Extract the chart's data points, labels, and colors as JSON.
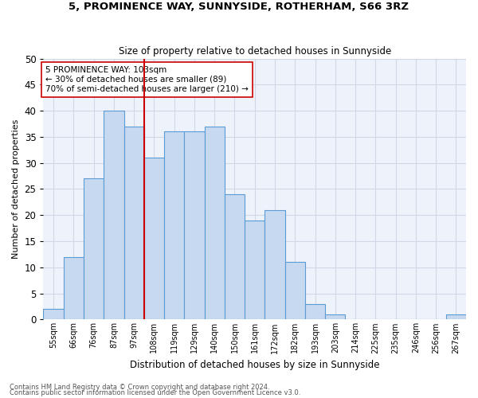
{
  "title1": "5, PROMINENCE WAY, SUNNYSIDE, ROTHERHAM, S66 3RZ",
  "title2": "Size of property relative to detached houses in Sunnyside",
  "xlabel": "Distribution of detached houses by size in Sunnyside",
  "ylabel": "Number of detached properties",
  "categories": [
    "55sqm",
    "66sqm",
    "76sqm",
    "87sqm",
    "97sqm",
    "108sqm",
    "119sqm",
    "129sqm",
    "140sqm",
    "150sqm",
    "161sqm",
    "172sqm",
    "182sqm",
    "193sqm",
    "203sqm",
    "214sqm",
    "225sqm",
    "235sqm",
    "246sqm",
    "256sqm",
    "267sqm"
  ],
  "values": [
    2,
    12,
    27,
    40,
    37,
    31,
    36,
    36,
    37,
    24,
    19,
    21,
    11,
    3,
    1,
    0,
    0,
    0,
    0,
    0,
    1
  ],
  "bar_color": "#c6d9f0",
  "bar_edge_color": "#5b9bd5",
  "grid_color": "#d0d8e8",
  "bg_color": "#eef2fa",
  "vline_x": 4.5,
  "vline_color": "#cc0000",
  "annotation_text": "5 PROMINENCE WAY: 103sqm\n← 30% of detached houses are smaller (89)\n70% of semi-detached houses are larger (210) →",
  "annotation_box_color": "#ffffff",
  "annotation_box_edge": "#cc0000",
  "ylim": [
    0,
    50
  ],
  "yticks": [
    0,
    5,
    10,
    15,
    20,
    25,
    30,
    35,
    40,
    45,
    50
  ],
  "footer1": "Contains HM Land Registry data © Crown copyright and database right 2024.",
  "footer2": "Contains public sector information licensed under the Open Government Licence v3.0."
}
